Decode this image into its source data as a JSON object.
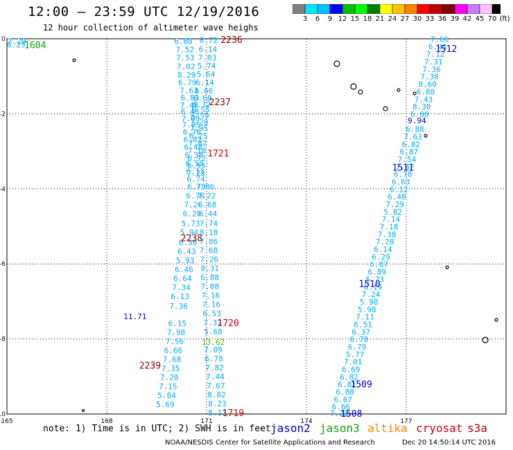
{
  "header": {
    "title": "12:00 – 23:59 UTC 12/19/2016",
    "subtitle": "12 hour collection of altimeter wave heighs"
  },
  "colorbar": {
    "colors": [
      "#808080",
      "#00e5ff",
      "#00c0ff",
      "#0000ff",
      "#00c000",
      "#00ff00",
      "#008000",
      "#ffff00",
      "#ffc000",
      "#ff8000",
      "#ff0000",
      "#c00000",
      "#800000",
      "#ff00ff",
      "#c080ff",
      "#ffc0ff",
      "#000000"
    ],
    "labels": [
      "3",
      "6",
      "9",
      "12",
      "15",
      "18",
      "21",
      "24",
      "27",
      "30",
      "33",
      "36",
      "39",
      "42",
      "45",
      "70",
      "(ft)"
    ]
  },
  "footer": {
    "note": "note: 1) Time is in UTC; 2) SWH is in feet",
    "missions": [
      {
        "name": "jason2",
        "color": "#0000cc"
      },
      {
        "name": "jason3",
        "color": "#00aa00"
      },
      {
        "name": "altika",
        "color": "#ff8800"
      },
      {
        "name": "cryosat",
        "color": "#dd0000"
      },
      {
        "name": "s3a",
        "color": "#aa0000"
      }
    ],
    "credit": "NOAA/NESDIS Center for Satellite Applications and Research",
    "timestamp": "Dec 20 14:50:14 UTC 2016"
  },
  "chart_data": {
    "type": "scatter",
    "title": "12:00 – 23:59 UTC 12/19/2016",
    "xlabel": "",
    "ylabel": "",
    "xlim": [
      165,
      180
    ],
    "ylim": [
      -10,
      0
    ],
    "x_ticks": [
      "165",
      "168",
      "171",
      "174",
      "177"
    ],
    "y_ticks": [
      "0",
      "-2",
      "-4",
      "-6",
      "-8",
      "-10"
    ],
    "grid": true,
    "series": [
      {
        "name": "track A",
        "color": "#00aaff",
        "points": [
          {
            "x": 170.3,
            "y": -0.06,
            "v": "6.80"
          },
          {
            "x": 170.35,
            "y": -0.29,
            "v": "7.52"
          },
          {
            "x": 170.36,
            "y": -0.5,
            "v": "7.53"
          },
          {
            "x": 170.38,
            "y": -0.74,
            "v": "7.02"
          },
          {
            "x": 170.4,
            "y": -0.96,
            "v": "8.29"
          },
          {
            "x": 170.42,
            "y": -1.16,
            "v": "6.79"
          },
          {
            "x": 170.47,
            "y": -1.37,
            "v": "7.63"
          },
          {
            "x": 170.5,
            "y": -1.57,
            "v": "6.83"
          },
          {
            "x": 170.48,
            "y": -1.77,
            "v": "7.48"
          },
          {
            "x": 170.5,
            "y": -1.94,
            "v": "6.48"
          },
          {
            "x": 170.52,
            "y": -2.12,
            "v": "7.00"
          },
          {
            "x": 170.54,
            "y": -2.29,
            "v": "7.05"
          },
          {
            "x": 170.56,
            "y": -2.48,
            "v": "6.76"
          },
          {
            "x": 170.58,
            "y": -2.68,
            "v": "6.82"
          },
          {
            "x": 170.6,
            "y": -2.89,
            "v": "6.48"
          },
          {
            "x": 170.62,
            "y": -3.1,
            "v": "6.38"
          },
          {
            "x": 170.64,
            "y": -3.32,
            "v": "6.55"
          },
          {
            "x": 170.66,
            "y": -3.53,
            "v": "6.11"
          },
          {
            "x": 170.68,
            "y": -3.74,
            "v": "6.74"
          }
        ]
      },
      {
        "name": "track A2",
        "color": "#00aaff",
        "points": [
          {
            "x": 171.06,
            "y": -0.04,
            "v": "6.72"
          },
          {
            "x": 171.04,
            "y": -0.28,
            "v": "6.14"
          },
          {
            "x": 171.02,
            "y": -0.5,
            "v": "7.03"
          },
          {
            "x": 171.0,
            "y": -0.72,
            "v": "5.74"
          },
          {
            "x": 170.98,
            "y": -0.94,
            "v": "5.64"
          },
          {
            "x": 170.95,
            "y": -1.16,
            "v": "6.14"
          },
          {
            "x": 170.92,
            "y": -1.38,
            "v": "6.66"
          },
          {
            "x": 170.88,
            "y": -1.58,
            "v": "6.68"
          },
          {
            "x": 170.85,
            "y": -1.74,
            "v": "6.32"
          },
          {
            "x": 170.82,
            "y": -1.89,
            "v": "6.55"
          },
          {
            "x": 170.8,
            "y": -2.05,
            "v": "6.59"
          },
          {
            "x": 170.78,
            "y": -2.21,
            "v": "7.20"
          },
          {
            "x": 170.77,
            "y": -2.38,
            "v": "7.95"
          },
          {
            "x": 170.75,
            "y": -2.58,
            "v": "6.25"
          },
          {
            "x": 170.73,
            "y": -2.78,
            "v": "7.82"
          },
          {
            "x": 170.71,
            "y": -2.98,
            "v": "7.18"
          },
          {
            "x": 170.7,
            "y": -3.18,
            "v": "6.72"
          },
          {
            "x": 170.69,
            "y": -3.38,
            "v": "6.95"
          },
          {
            "x": 170.68,
            "y": -3.58,
            "v": "7.23"
          }
        ]
      },
      {
        "name": "track B",
        "color": "#00aaff",
        "points": [
          {
            "x": 170.7,
            "y": -3.94,
            "v": "6.79"
          },
          {
            "x": 170.66,
            "y": -4.18,
            "v": "6.78"
          },
          {
            "x": 170.6,
            "y": -4.42,
            "v": "7.26"
          },
          {
            "x": 170.56,
            "y": -4.66,
            "v": "6.20"
          },
          {
            "x": 170.52,
            "y": -4.92,
            "v": "5.73"
          },
          {
            "x": 170.48,
            "y": -5.16,
            "v": "5.94"
          },
          {
            "x": 170.44,
            "y": -5.42,
            "v": "6.30"
          },
          {
            "x": 170.4,
            "y": -5.66,
            "v": "6.43"
          },
          {
            "x": 170.36,
            "y": -5.9,
            "v": "5.93"
          },
          {
            "x": 170.32,
            "y": -6.14,
            "v": "6.46"
          },
          {
            "x": 170.28,
            "y": -6.38,
            "v": "6.64"
          },
          {
            "x": 170.24,
            "y": -6.62,
            "v": "7.34"
          },
          {
            "x": 170.2,
            "y": -6.86,
            "v": "6.13"
          },
          {
            "x": 170.16,
            "y": -7.12,
            "v": "7.36"
          },
          {
            "x": 170.12,
            "y": -7.58,
            "v": "6.15"
          },
          {
            "x": 170.08,
            "y": -7.82,
            "v": "7.98"
          },
          {
            "x": 170.04,
            "y": -8.06,
            "v": "7.56"
          },
          {
            "x": 170.0,
            "y": -8.3,
            "v": "6.66"
          },
          {
            "x": 169.96,
            "y": -8.54,
            "v": "7.68"
          },
          {
            "x": 169.92,
            "y": -8.78,
            "v": "7.35"
          },
          {
            "x": 169.88,
            "y": -9.02,
            "v": "7.20"
          },
          {
            "x": 169.84,
            "y": -9.26,
            "v": "7.15"
          },
          {
            "x": 169.8,
            "y": -9.5,
            "v": "5.84"
          },
          {
            "x": 169.76,
            "y": -9.74,
            "v": "5.69"
          }
        ]
      },
      {
        "name": "track C",
        "color": "#00aaff",
        "points": [
          {
            "x": 170.96,
            "y": -3.94,
            "v": "7.06"
          },
          {
            "x": 171.0,
            "y": -4.18,
            "v": "7.22"
          },
          {
            "x": 171.02,
            "y": -4.42,
            "v": "6.68"
          },
          {
            "x": 171.04,
            "y": -4.66,
            "v": "6.44"
          },
          {
            "x": 171.06,
            "y": -4.92,
            "v": "7.74"
          },
          {
            "x": 171.06,
            "y": -5.16,
            "v": "8.18"
          },
          {
            "x": 171.06,
            "y": -5.4,
            "v": "7.86"
          },
          {
            "x": 171.06,
            "y": -5.64,
            "v": "7.68"
          },
          {
            "x": 171.08,
            "y": -5.88,
            "v": "7.26"
          },
          {
            "x": 171.1,
            "y": -6.12,
            "v": "8.31"
          },
          {
            "x": 171.1,
            "y": -6.36,
            "v": "6.88"
          },
          {
            "x": 171.1,
            "y": -6.6,
            "v": "7.08"
          },
          {
            "x": 171.12,
            "y": -6.84,
            "v": "7.16"
          },
          {
            "x": 171.14,
            "y": -7.08,
            "v": "7.16"
          },
          {
            "x": 171.16,
            "y": -7.32,
            "v": "6.53"
          },
          {
            "x": 171.18,
            "y": -7.56,
            "v": "7.32"
          },
          {
            "x": 171.2,
            "y": -7.8,
            "v": "5.68"
          },
          {
            "x": 171.2,
            "y": -8.28,
            "v": "7.09"
          },
          {
            "x": 171.22,
            "y": -8.52,
            "v": "6.78"
          },
          {
            "x": 171.24,
            "y": -8.76,
            "v": "7.82"
          },
          {
            "x": 171.26,
            "y": -9.0,
            "v": "7.44"
          },
          {
            "x": 171.28,
            "y": -9.24,
            "v": "7.67"
          },
          {
            "x": 171.3,
            "y": -9.48,
            "v": "8.02"
          },
          {
            "x": 171.32,
            "y": -9.72,
            "v": "8.23"
          },
          {
            "x": 171.32,
            "y": -9.96,
            "v": "8.17"
          }
        ]
      },
      {
        "name": "track D",
        "color": "#00aaff",
        "points": [
          {
            "x": 178.0,
            "y": -0.01,
            "v": "7.66"
          },
          {
            "x": 177.94,
            "y": -0.21,
            "v": "6.93"
          },
          {
            "x": 177.88,
            "y": -0.41,
            "v": "7.12"
          },
          {
            "x": 177.82,
            "y": -0.61,
            "v": "7.31"
          },
          {
            "x": 177.76,
            "y": -0.81,
            "v": "7.36"
          },
          {
            "x": 177.7,
            "y": -1.01,
            "v": "7.30"
          },
          {
            "x": 177.64,
            "y": -1.21,
            "v": "8.60"
          },
          {
            "x": 177.58,
            "y": -1.41,
            "v": "6.80"
          },
          {
            "x": 177.52,
            "y": -1.61,
            "v": "7.43"
          },
          {
            "x": 177.46,
            "y": -1.81,
            "v": "8.30"
          },
          {
            "x": 177.4,
            "y": -2.01,
            "v": "6.80"
          },
          {
            "x": 177.26,
            "y": -2.41,
            "v": "6.88"
          },
          {
            "x": 177.2,
            "y": -2.61,
            "v": "7.63"
          },
          {
            "x": 177.14,
            "y": -2.81,
            "v": "6.82"
          },
          {
            "x": 177.08,
            "y": -3.01,
            "v": "6.87"
          },
          {
            "x": 177.02,
            "y": -3.21,
            "v": "7.54"
          },
          {
            "x": 176.96,
            "y": -3.41,
            "v": "7.47"
          },
          {
            "x": 176.9,
            "y": -3.61,
            "v": "6.70"
          },
          {
            "x": 176.84,
            "y": -3.81,
            "v": "6.63"
          },
          {
            "x": 176.78,
            "y": -4.01,
            "v": "6.12"
          },
          {
            "x": 176.72,
            "y": -4.21,
            "v": "6.40"
          },
          {
            "x": 176.66,
            "y": -4.41,
            "v": "7.29"
          },
          {
            "x": 176.6,
            "y": -4.61,
            "v": "5.82"
          },
          {
            "x": 176.54,
            "y": -4.81,
            "v": "7.14"
          },
          {
            "x": 176.48,
            "y": -5.01,
            "v": "7.18"
          },
          {
            "x": 176.42,
            "y": -5.21,
            "v": "7.38"
          },
          {
            "x": 176.36,
            "y": -5.41,
            "v": "7.20"
          },
          {
            "x": 176.3,
            "y": -5.61,
            "v": "6.14"
          },
          {
            "x": 176.24,
            "y": -5.81,
            "v": "6.29"
          },
          {
            "x": 176.18,
            "y": -6.01,
            "v": "6.87"
          },
          {
            "x": 176.12,
            "y": -6.21,
            "v": "6.89"
          },
          {
            "x": 176.06,
            "y": -6.41,
            "v": "5.73"
          },
          {
            "x": 176.0,
            "y": -6.61,
            "v": "6.19"
          },
          {
            "x": 175.94,
            "y": -6.81,
            "v": "7.24"
          },
          {
            "x": 175.88,
            "y": -7.01,
            "v": "5.98"
          },
          {
            "x": 175.82,
            "y": -7.21,
            "v": "5.98"
          },
          {
            "x": 175.76,
            "y": -7.41,
            "v": "7.11"
          },
          {
            "x": 175.7,
            "y": -7.61,
            "v": "6.51"
          },
          {
            "x": 175.64,
            "y": -7.81,
            "v": "6.37"
          },
          {
            "x": 175.58,
            "y": -8.01,
            "v": "6.78"
          },
          {
            "x": 175.52,
            "y": -8.21,
            "v": "6.79"
          },
          {
            "x": 175.46,
            "y": -8.41,
            "v": "5.77"
          },
          {
            "x": 175.4,
            "y": -8.61,
            "v": "7.01"
          },
          {
            "x": 175.34,
            "y": -8.81,
            "v": "6.69"
          },
          {
            "x": 175.28,
            "y": -9.01,
            "v": "6.82"
          },
          {
            "x": 175.22,
            "y": -9.21,
            "v": "6.81"
          },
          {
            "x": 175.16,
            "y": -9.41,
            "v": "6.88"
          },
          {
            "x": 175.1,
            "y": -9.61,
            "v": "6.67"
          },
          {
            "x": 175.04,
            "y": -9.81,
            "v": "6.66"
          },
          {
            "x": 174.98,
            "y": -9.98,
            "v": "7.23"
          }
        ]
      },
      {
        "name": "corner",
        "color": "#00aaff",
        "points": [
          {
            "x": 165.3,
            "y": -0.06,
            "v": "7.29"
          },
          {
            "x": 165.28,
            "y": -0.16,
            "v": "6.25"
          }
        ]
      },
      {
        "name": "jason2 highlights",
        "color": "#0000cc",
        "points": [
          {
            "x": 177.32,
            "y": -2.18,
            "v": "9.94"
          },
          {
            "x": 168.85,
            "y": -7.4,
            "v": "11.71"
          }
        ]
      },
      {
        "name": "jason3 highlights",
        "color": "#44bb00",
        "points": [
          {
            "x": 171.2,
            "y": -8.08,
            "v": "13.62"
          }
        ]
      }
    ],
    "time_labels": [
      {
        "text": "2236",
        "x": 171.75,
        "y": -0.02,
        "color": "#880000"
      },
      {
        "text": "2237",
        "x": 171.4,
        "y": -1.68,
        "color": "#880000"
      },
      {
        "text": "1721",
        "x": 171.35,
        "y": -3.04,
        "color": "#cc0000"
      },
      {
        "text": "2238",
        "x": 170.55,
        "y": -5.3,
        "color": "#880000"
      },
      {
        "text": "1720",
        "x": 171.65,
        "y": -7.56,
        "color": "#cc0000"
      },
      {
        "text": "2239",
        "x": 169.3,
        "y": -8.7,
        "color": "#880000"
      },
      {
        "text": "1719",
        "x": 171.8,
        "y": -9.96,
        "color": "#cc0000"
      },
      {
        "text": "1604",
        "x": 165.85,
        "y": -0.16,
        "color": "#00aa00"
      },
      {
        "text": "1512",
        "x": 178.2,
        "y": -0.26,
        "color": "#0000cc"
      },
      {
        "text": "1511",
        "x": 176.9,
        "y": -3.42,
        "color": "#0000cc"
      },
      {
        "text": "1510",
        "x": 175.9,
        "y": -6.52,
        "color": "#0000cc"
      },
      {
        "text": "1509",
        "x": 175.65,
        "y": -9.2,
        "color": "#0000cc"
      },
      {
        "text": "1508",
        "x": 175.35,
        "y": -9.98,
        "color": "#0000cc"
      }
    ]
  }
}
